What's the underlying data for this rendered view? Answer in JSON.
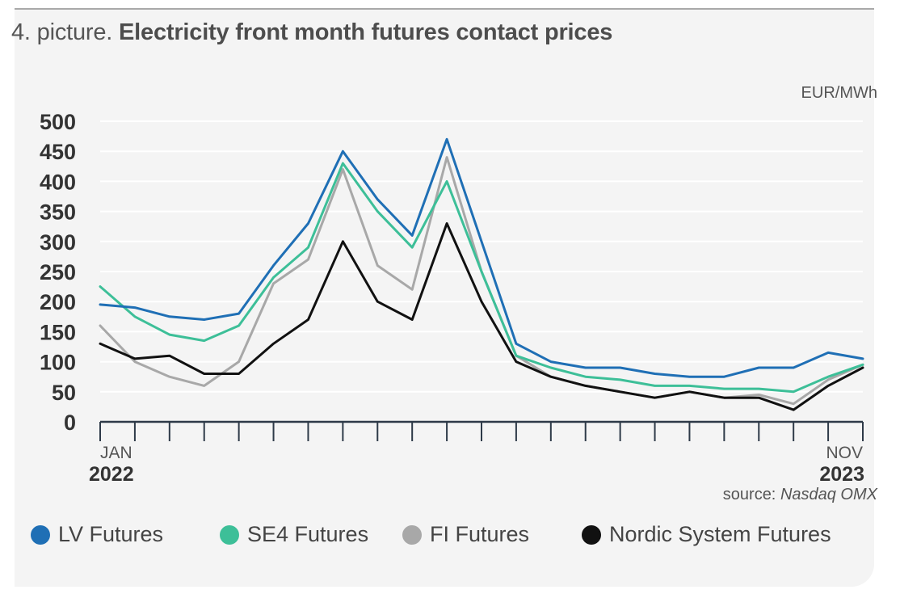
{
  "header": {
    "prefix": "4. picture.",
    "title": "Electricity front month futures contact prices"
  },
  "unit_label": "EUR/MWh",
  "source": {
    "label": "source:",
    "name": "Nasdaq OMX"
  },
  "colors": {
    "lv": "#1f6fb5",
    "se4": "#3dbf98",
    "fi": "#a8a8a8",
    "nordic": "#111111"
  },
  "chart_data": {
    "type": "line",
    "title": "Electricity front month futures contact prices",
    "ylabel": "EUR/MWh",
    "ylim": [
      0,
      500
    ],
    "yticks": [
      0,
      50,
      100,
      150,
      200,
      250,
      300,
      350,
      400,
      450,
      500
    ],
    "xlim": [
      "2022-01",
      "2023-11"
    ],
    "x_tick_labels": [
      {
        "month": "JAN",
        "year": "2022"
      },
      {
        "month": "NOV",
        "year": "2023"
      }
    ],
    "grid": true,
    "legend_position": "bottom",
    "x": [
      "2022-01",
      "2022-02",
      "2022-03",
      "2022-04",
      "2022-05",
      "2022-06",
      "2022-07",
      "2022-08",
      "2022-09",
      "2022-10",
      "2022-11",
      "2022-12",
      "2023-01",
      "2023-02",
      "2023-03",
      "2023-04",
      "2023-05",
      "2023-06",
      "2023-07",
      "2023-08",
      "2023-09",
      "2023-10",
      "2023-11"
    ],
    "series": [
      {
        "name": "LV Futures",
        "color": "#1f6fb5",
        "values": [
          195,
          190,
          175,
          170,
          180,
          260,
          330,
          450,
          370,
          310,
          470,
          300,
          130,
          100,
          90,
          90,
          80,
          75,
          75,
          90,
          90,
          115,
          105
        ]
      },
      {
        "name": "SE4 Futures",
        "color": "#3dbf98",
        "values": [
          225,
          175,
          145,
          135,
          160,
          240,
          290,
          430,
          350,
          290,
          400,
          250,
          110,
          90,
          75,
          70,
          60,
          60,
          55,
          55,
          50,
          75,
          95
        ]
      },
      {
        "name": "FI Futures",
        "color": "#a8a8a8",
        "values": [
          160,
          100,
          75,
          60,
          100,
          230,
          270,
          420,
          260,
          220,
          440,
          250,
          110,
          75,
          60,
          50,
          40,
          50,
          40,
          45,
          30,
          70,
          95
        ]
      },
      {
        "name": "Nordic System Futures",
        "color": "#111111",
        "values": [
          130,
          105,
          110,
          80,
          80,
          130,
          170,
          300,
          200,
          170,
          330,
          200,
          100,
          75,
          60,
          50,
          40,
          50,
          40,
          40,
          20,
          60,
          90
        ]
      }
    ]
  }
}
